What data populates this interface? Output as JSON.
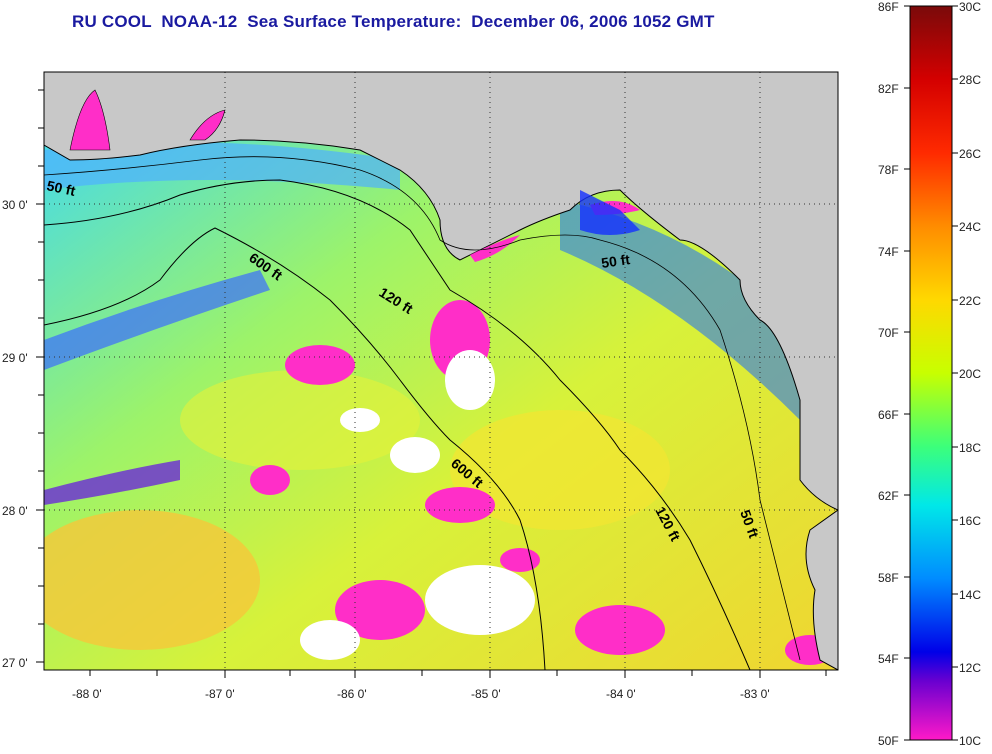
{
  "title": "RU COOL  NOAA-12  Sea Surface Temperature:  December 06, 2006 1052 GMT",
  "axes": {
    "lat_labels": [
      "30 0'",
      "29 0'",
      "28 0'",
      "27 0'"
    ],
    "lon_labels": [
      "-88 0'",
      "-87 0'",
      "-86 0'",
      "-85 0'",
      "-84 0'",
      "-83 0'"
    ]
  },
  "contours": {
    "a": "50 ft",
    "b": "600 ft",
    "c": "120 ft",
    "d": "50 ft",
    "e": "600 ft",
    "f": "120 ft",
    "g": "50 ft"
  },
  "colorbar": {
    "fahrenheit_labels": [
      "86F",
      "82F",
      "78F",
      "74F",
      "70F",
      "66F",
      "62F",
      "58F",
      "54F",
      "50F"
    ],
    "celsius_labels": [
      "30C",
      "28C",
      "26C",
      "24C",
      "22C",
      "20C",
      "18C",
      "16C",
      "14C",
      "12C",
      "10C"
    ]
  },
  "colors": {
    "land": "#c8c8c8",
    "title": "#1a1aa0"
  }
}
